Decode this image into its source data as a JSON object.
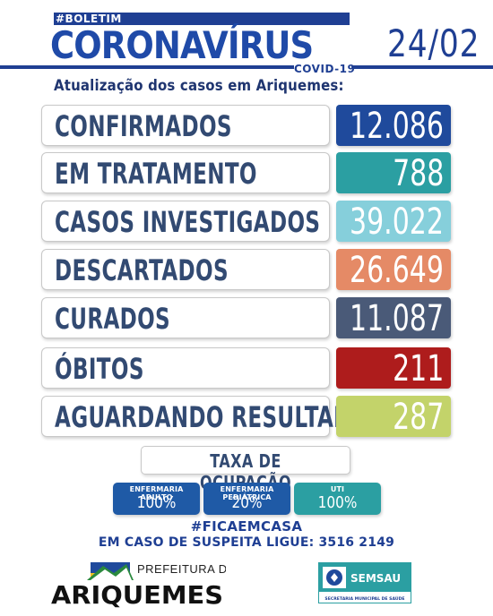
{
  "header": {
    "boletim": "#BOLETIM",
    "title": "CORONAVÍRUS",
    "covid": "COVID-19",
    "date": "24/02",
    "subtitle": "Atualização dos casos em Ariquemes:"
  },
  "rows": [
    {
      "label": "CONFIRMADOS",
      "value": "12.086",
      "color": "#1f4a9c"
    },
    {
      "label": "EM TRATAMENTO",
      "value": "788",
      "color": "#2b9fa2"
    },
    {
      "label": "CASOS INVESTIGADOS",
      "value": "39.022",
      "color": "#86cfdb"
    },
    {
      "label": "DESCARTADOS",
      "value": "26.649",
      "color": "#e58a66"
    },
    {
      "label": "CURADOS",
      "value": "11.087",
      "color": "#4a5a78"
    },
    {
      "label": "ÓBITOS",
      "value": "211",
      "color": "#ae1c1c"
    },
    {
      "label": "AGUARDANDO RESULTADO",
      "value": "287",
      "color": "#c3d36a"
    }
  ],
  "occupancy": {
    "title": "TAXA DE OCUPAÇÃO",
    "items": [
      {
        "label": "ENFERMARIA ADULTO",
        "value": "100%",
        "color": "#1f5aa6"
      },
      {
        "label": "ENFERMARIA PEDIÁTRICA",
        "value": "20%",
        "color": "#1f5aa6"
      },
      {
        "label": "UTI",
        "value": "100%",
        "color": "#2b9fa2"
      }
    ]
  },
  "footer": {
    "hashtag": "#FICAEMCASA",
    "phone_text": "EM CASO DE SUSPEITA LIGUE: 3516 2149"
  },
  "logos": {
    "prefeitura_de": "PREFEITURA DE",
    "city": "ARIQUEMES",
    "semsau": "SEMSAU",
    "semsau_sub": "SECRETARIA MUNICIPAL DE SAÚDE"
  }
}
